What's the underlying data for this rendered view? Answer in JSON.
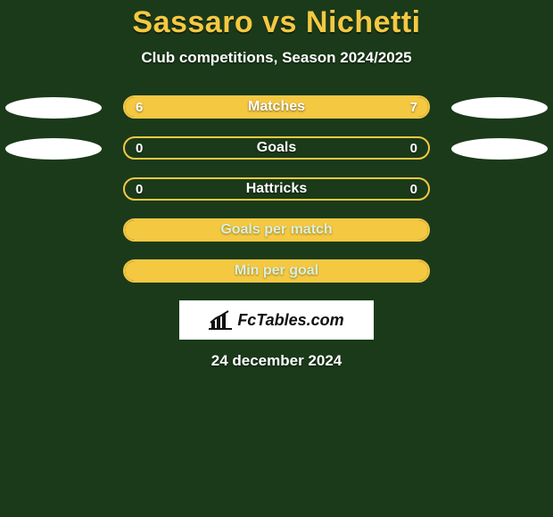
{
  "title": "Sassaro vs Nichetti",
  "subtitle": "Club competitions, Season 2024/2025",
  "colors": {
    "background": "#1a3a1a",
    "accent": "#f5c842",
    "text": "#ffffff",
    "oval": "#ffffff"
  },
  "rows": [
    {
      "id": "matches",
      "label": "Matches",
      "left_value": "6",
      "right_value": "7",
      "left_fill_pct": 46,
      "right_fill_pct": 54,
      "show_ovals": true,
      "fill_mode": "split"
    },
    {
      "id": "goals",
      "label": "Goals",
      "left_value": "0",
      "right_value": "0",
      "left_fill_pct": 0,
      "right_fill_pct": 0,
      "show_ovals": true,
      "fill_mode": "none"
    },
    {
      "id": "hattricks",
      "label": "Hattricks",
      "left_value": "0",
      "right_value": "0",
      "left_fill_pct": 0,
      "right_fill_pct": 0,
      "show_ovals": false,
      "fill_mode": "none"
    },
    {
      "id": "goals-per-match",
      "label": "Goals per match",
      "left_value": "",
      "right_value": "",
      "left_fill_pct": 100,
      "right_fill_pct": 0,
      "show_ovals": false,
      "fill_mode": "full"
    },
    {
      "id": "min-per-goal",
      "label": "Min per goal",
      "left_value": "",
      "right_value": "",
      "left_fill_pct": 100,
      "right_fill_pct": 0,
      "show_ovals": false,
      "fill_mode": "full"
    }
  ],
  "logo_text": "FcTables.com",
  "date": "24 december 2024"
}
